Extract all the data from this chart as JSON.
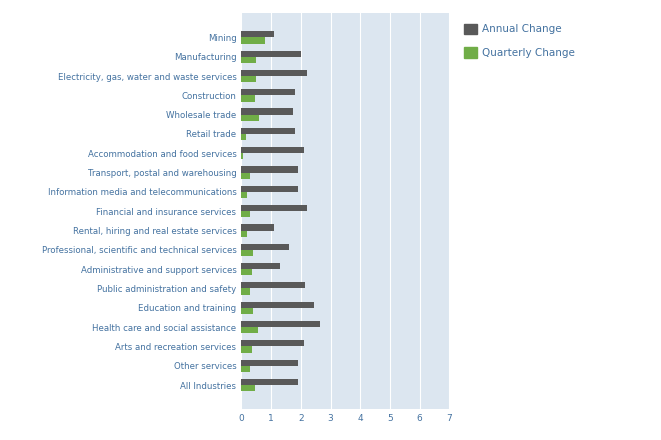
{
  "industries": [
    "Mining",
    "Manufacturing",
    "Electricity, gas, water and waste services",
    "Construction",
    "Wholesale trade",
    "Retail trade",
    "Accommodation and food services",
    "Transport, postal and warehousing",
    "Information media and telecommunications",
    "Financial and insurance services",
    "Rental, hiring and real estate services",
    "Professional, scientific and technical services",
    "Administrative and support services",
    "Public administration and safety",
    "Education and training",
    "Health care and social assistance",
    "Arts and recreation services",
    "Other services",
    "All Industries"
  ],
  "annual_change": [
    1.1,
    2.0,
    2.2,
    1.8,
    1.75,
    1.8,
    2.1,
    1.9,
    1.9,
    2.2,
    1.1,
    1.6,
    1.3,
    2.15,
    2.45,
    2.65,
    2.1,
    1.9,
    1.9
  ],
  "quarterly_change": [
    0.8,
    0.5,
    0.5,
    0.45,
    0.6,
    0.15,
    0.05,
    0.3,
    0.2,
    0.3,
    0.2,
    0.4,
    0.35,
    0.3,
    0.4,
    0.55,
    0.35,
    0.3,
    0.45
  ],
  "annual_color": "#595959",
  "quarterly_color": "#70ad47",
  "background_color": "#ffffff",
  "plot_background": "#dce6f0",
  "grid_color": "#ffffff",
  "text_color": "#4472a0",
  "xlim": [
    0,
    7
  ],
  "xticks": [
    0,
    1,
    2,
    3,
    4,
    5,
    6,
    7
  ],
  "legend_labels": [
    "Annual Change",
    "Quarterly Change"
  ],
  "bar_height": 0.32,
  "figsize": [
    6.61,
    4.4
  ],
  "dpi": 100,
  "label_fontsize": 6.2,
  "tick_fontsize": 6.5
}
